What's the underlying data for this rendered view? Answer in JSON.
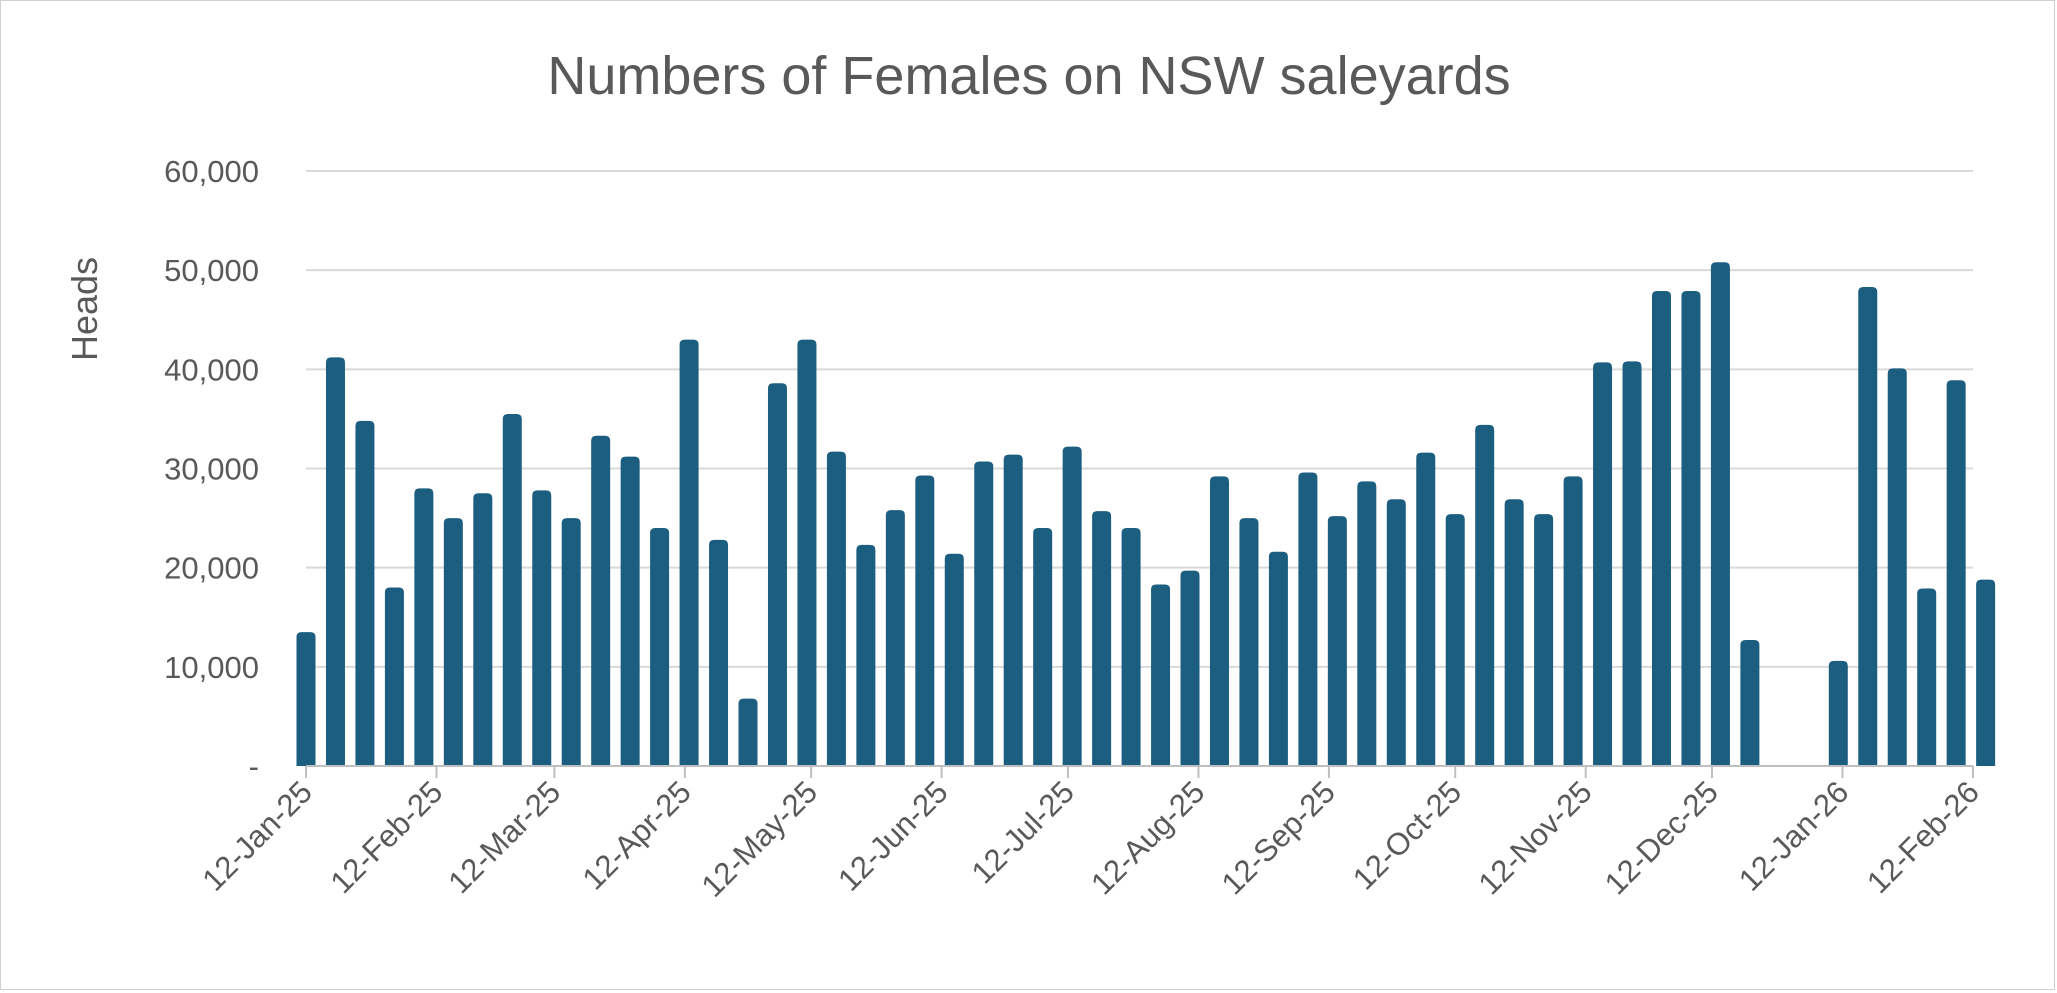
{
  "chart_data": {
    "type": "bar",
    "title": "Numbers of Females on NSW saleyards",
    "xlabel": "",
    "ylabel": "Heads",
    "ylim": [
      0,
      60000
    ],
    "yticks": [
      0,
      10000,
      20000,
      30000,
      40000,
      50000,
      60000
    ],
    "ytick_labels": [
      "-",
      "10,000",
      "20,000",
      "30,000",
      "40,000",
      "50,000",
      "60,000"
    ],
    "grid": true,
    "bar_color": "#1b5e80",
    "x_start": "2025-01-12",
    "x_end": "2026-02-12",
    "xtick_labels": [
      "12-Jan-25",
      "12-Feb-25",
      "12-Mar-25",
      "12-Apr-25",
      "12-May-25",
      "12-Jun-25",
      "12-Jul-25",
      "12-Aug-25",
      "12-Sep-25",
      "12-Oct-25",
      "12-Nov-25",
      "12-Dec-25",
      "12-Jan-26",
      "12-Feb-26"
    ],
    "xtick_dates": [
      "2025-01-12",
      "2025-02-12",
      "2025-03-12",
      "2025-04-12",
      "2025-05-12",
      "2025-06-12",
      "2025-07-12",
      "2025-08-12",
      "2025-09-12",
      "2025-10-12",
      "2025-11-12",
      "2025-12-12",
      "2026-01-12",
      "2026-02-12"
    ],
    "series": [
      {
        "name": "Females",
        "dates": [
          "2025-01-12",
          "2025-01-19",
          "2025-01-26",
          "2025-02-02",
          "2025-02-09",
          "2025-02-16",
          "2025-02-23",
          "2025-03-02",
          "2025-03-09",
          "2025-03-16",
          "2025-03-23",
          "2025-03-30",
          "2025-04-06",
          "2025-04-13",
          "2025-04-20",
          "2025-04-27",
          "2025-05-04",
          "2025-05-11",
          "2025-05-18",
          "2025-05-25",
          "2025-06-01",
          "2025-06-08",
          "2025-06-15",
          "2025-06-22",
          "2025-06-29",
          "2025-07-06",
          "2025-07-13",
          "2025-07-20",
          "2025-07-27",
          "2025-08-03",
          "2025-08-10",
          "2025-08-17",
          "2025-08-24",
          "2025-08-31",
          "2025-09-07",
          "2025-09-14",
          "2025-09-21",
          "2025-09-28",
          "2025-10-05",
          "2025-10-12",
          "2025-10-19",
          "2025-10-26",
          "2025-11-02",
          "2025-11-09",
          "2025-11-16",
          "2025-11-23",
          "2025-11-30",
          "2025-12-07",
          "2025-12-14",
          "2025-12-21",
          "2026-01-11",
          "2026-01-18",
          "2026-01-25",
          "2026-02-01",
          "2026-02-08",
          "2026-02-15"
        ],
        "values": [
          13500,
          41200,
          34800,
          18000,
          28000,
          25000,
          27500,
          35500,
          27800,
          25000,
          33300,
          31200,
          24000,
          43000,
          22800,
          6800,
          38600,
          43000,
          31700,
          22300,
          25800,
          29300,
          21400,
          30700,
          31400,
          24000,
          32200,
          25700,
          24000,
          18300,
          19700,
          29200,
          25000,
          21600,
          29600,
          25200,
          28700,
          26900,
          31600,
          25400,
          34400,
          26900,
          25400,
          29200,
          40700,
          40800,
          47900,
          47900,
          50800,
          12700,
          10600,
          48300,
          40100,
          17900,
          38900,
          18800
        ]
      }
    ]
  }
}
